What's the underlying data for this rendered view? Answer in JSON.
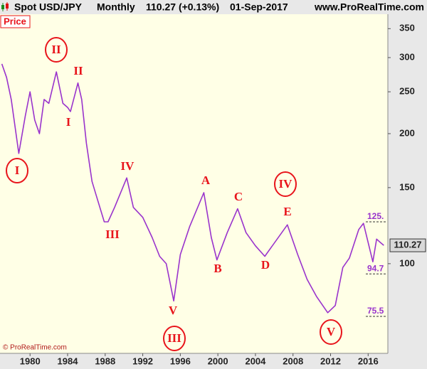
{
  "chart_data": {
    "type": "line",
    "title": "Spot USD/JPY",
    "period": "Monthly",
    "last_quote": "110.27 (+0.13%)",
    "date": "01-Sep-2017",
    "source": "www.ProRealTime.com",
    "panel_label": "Price",
    "copyright": "© ProRealTime.com",
    "log_scale": true,
    "x": [
      1977.0,
      1977.5,
      1978.0,
      1978.8,
      1979.5,
      1980.0,
      1980.5,
      1981.0,
      1981.5,
      1982.0,
      1982.8,
      1983.5,
      1984.0,
      1984.3,
      1985.1,
      1985.5,
      1986.0,
      1986.6,
      1987.0,
      1987.9,
      1988.3,
      1989.0,
      1990.3,
      1991.0,
      1992.0,
      1993.0,
      1993.8,
      1994.5,
      1995.3,
      1996.0,
      1997.0,
      1998.5,
      1999.3,
      1999.9,
      2001.0,
      2002.1,
      2003.0,
      2004.0,
      2005.0,
      2007.4,
      2008.5,
      2009.5,
      2010.5,
      2011.7,
      2012.5,
      2013.3,
      2014.0,
      2015.0,
      2015.5,
      2016.5,
      2016.9,
      2017.3,
      2017.67
    ],
    "series": [
      {
        "name": "Spot USD/JPY",
        "color": "#9933cc",
        "values": [
          290,
          270,
          240,
          180,
          220,
          250,
          215,
          200,
          240,
          235,
          278,
          235,
          230,
          225,
          262,
          240,
          190,
          155,
          145,
          125,
          125,
          135,
          158,
          135,
          128,
          115,
          104,
          100,
          82,
          105,
          122,
          146,
          115,
          102,
          118,
          134,
          118,
          110,
          104,
          123,
          105,
          92,
          84,
          77,
          80,
          98,
          103,
          120,
          124,
          101,
          114,
          112,
          110.27
        ]
      }
    ],
    "last_value": 110.27,
    "last_value_label": "110.27",
    "xlim": [
      1976.8,
      2018.1
    ],
    "ylim": [
      62,
      378
    ],
    "xticks": [
      1980,
      1984,
      1988,
      1992,
      1996,
      2000,
      2004,
      2008,
      2012,
      2016
    ],
    "yticks": [
      100,
      150,
      200,
      250,
      300,
      350
    ],
    "levels": [
      {
        "value": 125,
        "label": "125."
      },
      94.7,
      75.5
    ],
    "annotations": [
      "I",
      "II",
      "I",
      "II",
      "III",
      "IV",
      "V",
      "III",
      "A",
      "B",
      "C",
      "D",
      "IV",
      "E",
      "V"
    ]
  }
}
